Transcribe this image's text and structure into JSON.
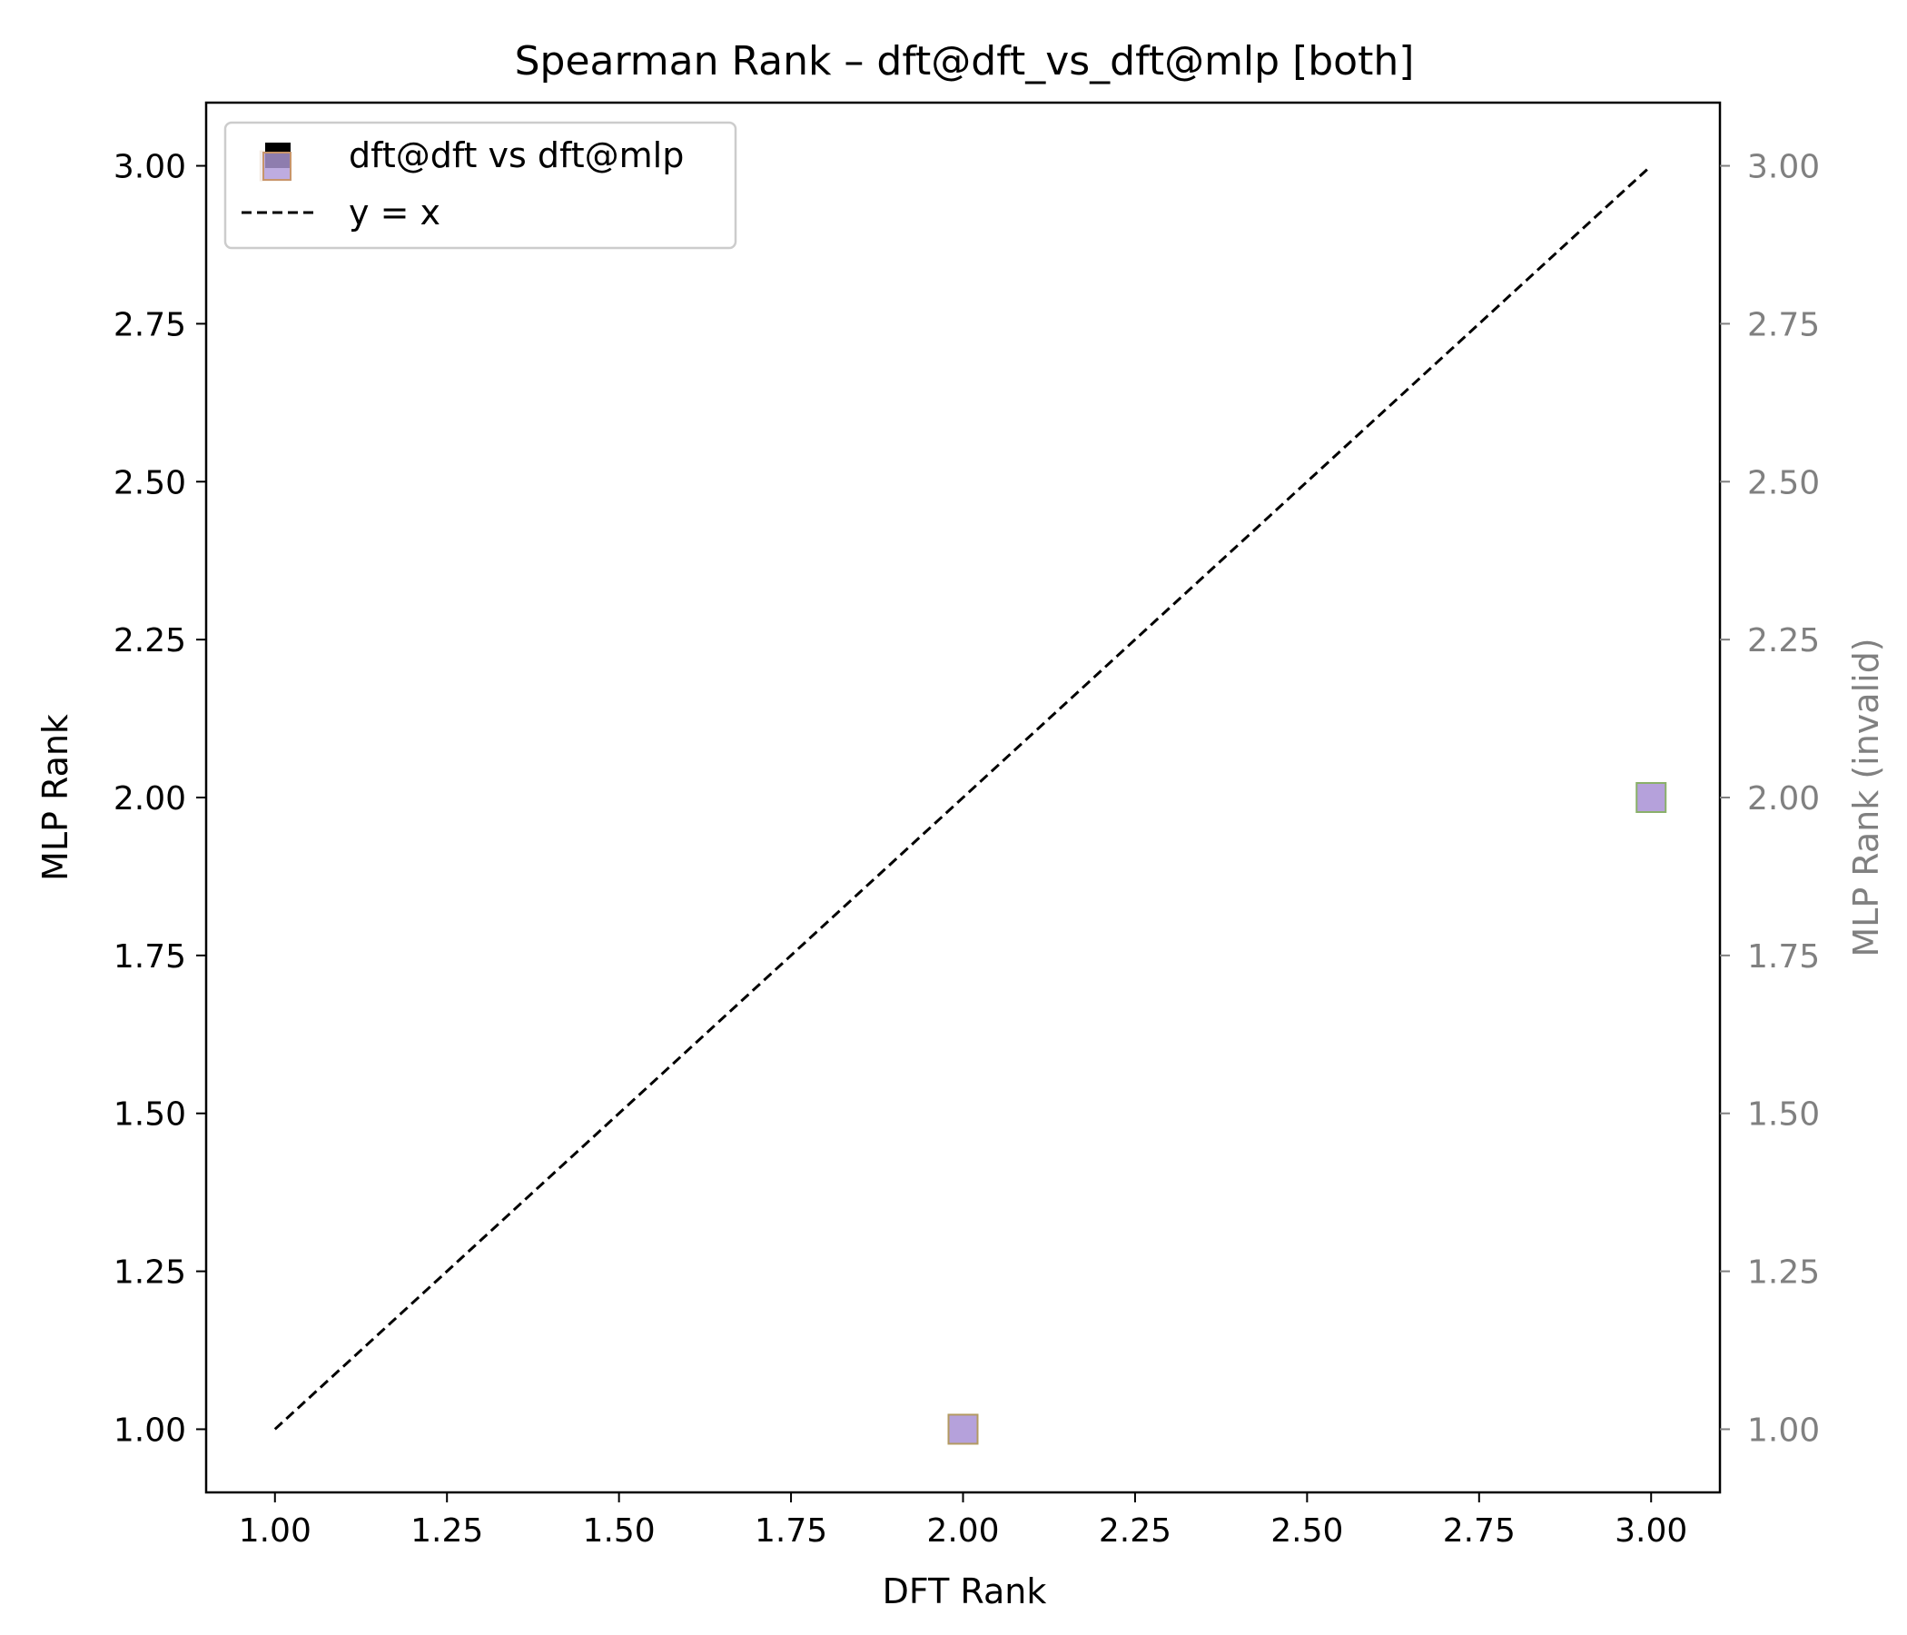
{
  "chart_data": {
    "type": "scatter",
    "title": "Spearman Rank – dft@dft_vs_dft@mlp [both]",
    "xlabel": "DFT Rank",
    "ylabel": "MLP Rank",
    "ylabel_right": "MLP Rank (invalid)",
    "xlim": [
      0.9,
      3.1
    ],
    "ylim": [
      0.9,
      3.1
    ],
    "x_ticks": [
      "1.00",
      "1.25",
      "1.50",
      "1.75",
      "2.00",
      "2.25",
      "2.50",
      "2.75",
      "3.00"
    ],
    "y_ticks": [
      "1.00",
      "1.25",
      "1.50",
      "1.75",
      "2.00",
      "2.25",
      "2.50",
      "2.75",
      "3.00"
    ],
    "y_ticks_right": [
      "1.00",
      "1.25",
      "1.50",
      "1.75",
      "2.00",
      "2.25",
      "2.50",
      "2.75",
      "3.00"
    ],
    "grid": false,
    "legend_position": "top-left",
    "series": [
      {
        "name": "dft@dft vs dft@mlp",
        "marker": "square",
        "color": "#b19cd9",
        "points": [
          {
            "x": 1,
            "y": 3,
            "edge": "#c8956a"
          },
          {
            "x": 2,
            "y": 1,
            "edge": "#b39a62"
          },
          {
            "x": 3,
            "y": 2,
            "edge": "#8ab06a"
          }
        ]
      },
      {
        "name": "y = x",
        "style": "dashed",
        "color": "#000000",
        "points": [
          {
            "x": 1,
            "y": 1
          },
          {
            "x": 3,
            "y": 3
          }
        ]
      }
    ],
    "colors": {
      "axis": "#000000",
      "right_axis": "#808080",
      "legend_border": "#cccccc"
    }
  }
}
